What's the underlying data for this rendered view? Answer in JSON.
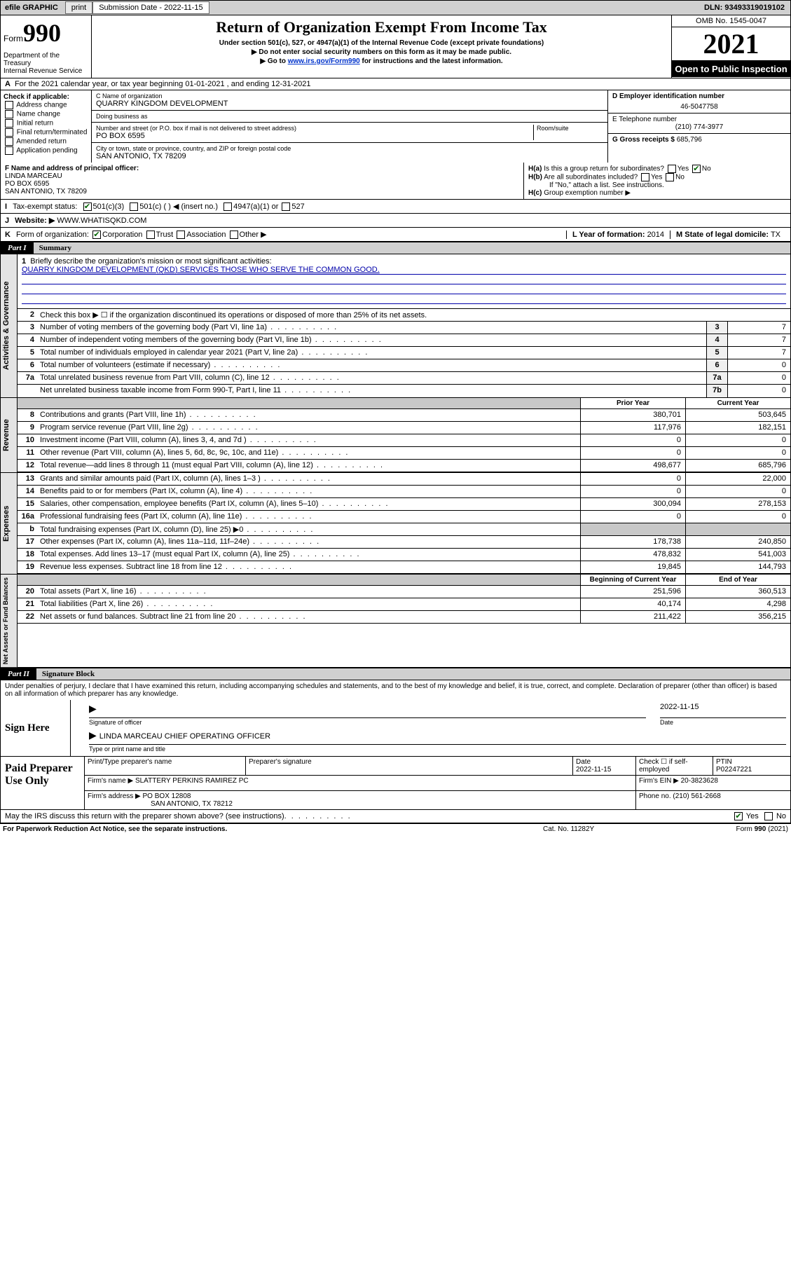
{
  "colors": {
    "link": "#0033cc",
    "block_bg": "#000000",
    "shade": "#c8c8c8",
    "check": "#006400"
  },
  "topbar": {
    "efile": "efile GRAPHIC",
    "print": "print",
    "submission_label": "Submission Date - 2022-11-15",
    "dln": "DLN: 93493319019102"
  },
  "header": {
    "form_word": "Form",
    "form_num": "990",
    "title": "Return of Organization Exempt From Income Tax",
    "sub1": "Under section 501(c), 527, or 4947(a)(1) of the Internal Revenue Code (except private foundations)",
    "sub2": "Do not enter social security numbers on this form as it may be made public.",
    "sub3_pre": "Go to ",
    "sub3_link": "www.irs.gov/Form990",
    "sub3_post": " for instructions and the latest information.",
    "dept": "Department of the Treasury\nInternal Revenue Service",
    "omb": "OMB No. 1545-0047",
    "year": "2021",
    "open": "Open to Public Inspection"
  },
  "row_a": "For the 2021 calendar year, or tax year beginning 01-01-2021   , and ending 12-31-2021",
  "section_b": {
    "title": "Check if applicable:",
    "opts": [
      "Address change",
      "Name change",
      "Initial return",
      "Final return/terminated",
      "Amended return",
      "Application pending"
    ]
  },
  "section_c": {
    "name_label": "C Name of organization",
    "name": "QUARRY KINGDOM DEVELOPMENT",
    "dba_label": "Doing business as",
    "dba": "",
    "addr_label": "Number and street (or P.O. box if mail is not delivered to street address)",
    "room_label": "Room/suite",
    "addr": "PO BOX 6595",
    "city_label": "City or town, state or province, country, and ZIP or foreign postal code",
    "city": "SAN ANTONIO, TX  78209"
  },
  "section_d": {
    "label": "D Employer identification number",
    "val": "46-5047758"
  },
  "section_e": {
    "label": "E Telephone number",
    "val": "(210) 774-3977"
  },
  "section_g": {
    "label": "G Gross receipts $",
    "val": "685,796"
  },
  "officer": {
    "label": "F Name and address of principal officer:",
    "name": "LINDA MARCEAU",
    "addr1": "PO BOX 6595",
    "addr2": "SAN ANTONIO, TX  78209"
  },
  "h": {
    "a": "Is this a group return for subordinates?",
    "a_yes": "Yes",
    "a_no": "No",
    "b": "Are all subordinates included?",
    "b_note": "If \"No,\" attach a list. See instructions.",
    "c": "Group exemption number ▶"
  },
  "tax_exempt": {
    "label": "Tax-exempt status:",
    "c3": "501(c)(3)",
    "c": "501(c) (  ) ◀ (insert no.)",
    "a1": "4947(a)(1) or",
    "s527": "527"
  },
  "website": {
    "label": "Website: ▶",
    "val": "WWW.WHATISQKD.COM"
  },
  "k": {
    "label": "Form of organization:",
    "corp": "Corporation",
    "trust": "Trust",
    "assoc": "Association",
    "other": "Other ▶"
  },
  "l": {
    "label": "L Year of formation:",
    "val": "2014"
  },
  "m": {
    "label": "M State of legal domicile:",
    "val": "TX"
  },
  "part1": {
    "num": "Part I",
    "title": "Summary"
  },
  "gov": {
    "tab": "Activities & Governance",
    "l1a": "Briefly describe the organization's mission or most significant activities:",
    "l1b": "QUARRY KINGDOM DEVELOPMENT (QKD) SERVICES THOSE WHO SERVE THE COMMON GOOD.",
    "l2": "Check this box ▶ ☐ if the organization discontinued its operations or disposed of more than 25% of its net assets.",
    "rows": [
      {
        "n": "3",
        "t": "Number of voting members of the governing body (Part VI, line 1a)",
        "b": "3",
        "v": "7"
      },
      {
        "n": "4",
        "t": "Number of independent voting members of the governing body (Part VI, line 1b)",
        "b": "4",
        "v": "7"
      },
      {
        "n": "5",
        "t": "Total number of individuals employed in calendar year 2021 (Part V, line 2a)",
        "b": "5",
        "v": "7"
      },
      {
        "n": "6",
        "t": "Total number of volunteers (estimate if necessary)",
        "b": "6",
        "v": "0"
      },
      {
        "n": "7a",
        "t": "Total unrelated business revenue from Part VIII, column (C), line 12",
        "b": "7a",
        "v": "0"
      },
      {
        "n": "",
        "t": "Net unrelated business taxable income from Form 990-T, Part I, line 11",
        "b": "7b",
        "v": "0"
      }
    ]
  },
  "col_hdrs": {
    "prior": "Prior Year",
    "current": "Current Year",
    "boy": "Beginning of Current Year",
    "eoy": "End of Year"
  },
  "rev": {
    "tab": "Revenue",
    "rows": [
      {
        "n": "8",
        "t": "Contributions and grants (Part VIII, line 1h)",
        "p": "380,701",
        "c": "503,645"
      },
      {
        "n": "9",
        "t": "Program service revenue (Part VIII, line 2g)",
        "p": "117,976",
        "c": "182,151"
      },
      {
        "n": "10",
        "t": "Investment income (Part VIII, column (A), lines 3, 4, and 7d )",
        "p": "0",
        "c": "0"
      },
      {
        "n": "11",
        "t": "Other revenue (Part VIII, column (A), lines 5, 6d, 8c, 9c, 10c, and 11e)",
        "p": "0",
        "c": "0"
      },
      {
        "n": "12",
        "t": "Total revenue—add lines 8 through 11 (must equal Part VIII, column (A), line 12)",
        "p": "498,677",
        "c": "685,796"
      }
    ]
  },
  "exp": {
    "tab": "Expenses",
    "rows": [
      {
        "n": "13",
        "t": "Grants and similar amounts paid (Part IX, column (A), lines 1–3 )",
        "p": "0",
        "c": "22,000"
      },
      {
        "n": "14",
        "t": "Benefits paid to or for members (Part IX, column (A), line 4)",
        "p": "0",
        "c": "0"
      },
      {
        "n": "15",
        "t": "Salaries, other compensation, employee benefits (Part IX, column (A), lines 5–10)",
        "p": "300,094",
        "c": "278,153"
      },
      {
        "n": "16a",
        "t": "Professional fundraising fees (Part IX, column (A), line 11e)",
        "p": "0",
        "c": "0"
      },
      {
        "n": "b",
        "t": "Total fundraising expenses (Part IX, column (D), line 25) ▶0",
        "p": "",
        "c": "",
        "shade": true
      },
      {
        "n": "17",
        "t": "Other expenses (Part IX, column (A), lines 11a–11d, 11f–24e)",
        "p": "178,738",
        "c": "240,850"
      },
      {
        "n": "18",
        "t": "Total expenses. Add lines 13–17 (must equal Part IX, column (A), line 25)",
        "p": "478,832",
        "c": "541,003"
      },
      {
        "n": "19",
        "t": "Revenue less expenses. Subtract line 18 from line 12",
        "p": "19,845",
        "c": "144,793"
      }
    ]
  },
  "net": {
    "tab": "Net Assets or Fund Balances",
    "rows": [
      {
        "n": "20",
        "t": "Total assets (Part X, line 16)",
        "p": "251,596",
        "c": "360,513"
      },
      {
        "n": "21",
        "t": "Total liabilities (Part X, line 26)",
        "p": "40,174",
        "c": "4,298"
      },
      {
        "n": "22",
        "t": "Net assets or fund balances. Subtract line 21 from line 20",
        "p": "211,422",
        "c": "356,215"
      }
    ]
  },
  "part2": {
    "num": "Part II",
    "title": "Signature Block"
  },
  "penalty": "Under penalties of perjury, I declare that I have examined this return, including accompanying schedules and statements, and to the best of my knowledge and belief, it is true, correct, and complete. Declaration of preparer (other than officer) is based on all information of which preparer has any knowledge.",
  "sign": {
    "here": "Sign Here",
    "sig_cap": "Signature of officer",
    "date_cap": "Date",
    "date_val": "2022-11-15",
    "name": "LINDA MARCEAU CHIEF OPERATING OFFICER",
    "name_cap": "Type or print name and title"
  },
  "prep": {
    "here": "Paid Preparer Use Only",
    "h1": "Print/Type preparer's name",
    "h2": "Preparer's signature",
    "h3": "Date",
    "h4": "Check ☐ if self-employed",
    "h5": "PTIN",
    "date": "2022-11-15",
    "ptin": "P02247221",
    "firm_name_lbl": "Firm's name   ▶",
    "firm_name": "SLATTERY PERKINS RAMIREZ PC",
    "firm_ein_lbl": "Firm's EIN ▶",
    "firm_ein": "20-3823628",
    "firm_addr_lbl": "Firm's address ▶",
    "firm_addr": "PO BOX 12808",
    "firm_city": "SAN ANTONIO, TX  78212",
    "phone_lbl": "Phone no.",
    "phone": "(210) 561-2668"
  },
  "discuss": {
    "txt": "May the IRS discuss this return with the preparer shown above? (see instructions)",
    "yes": "Yes",
    "no": "No"
  },
  "footer": {
    "f1": "For Paperwork Reduction Act Notice, see the separate instructions.",
    "f2": "Cat. No. 11282Y",
    "f3": "Form 990 (2021)"
  }
}
